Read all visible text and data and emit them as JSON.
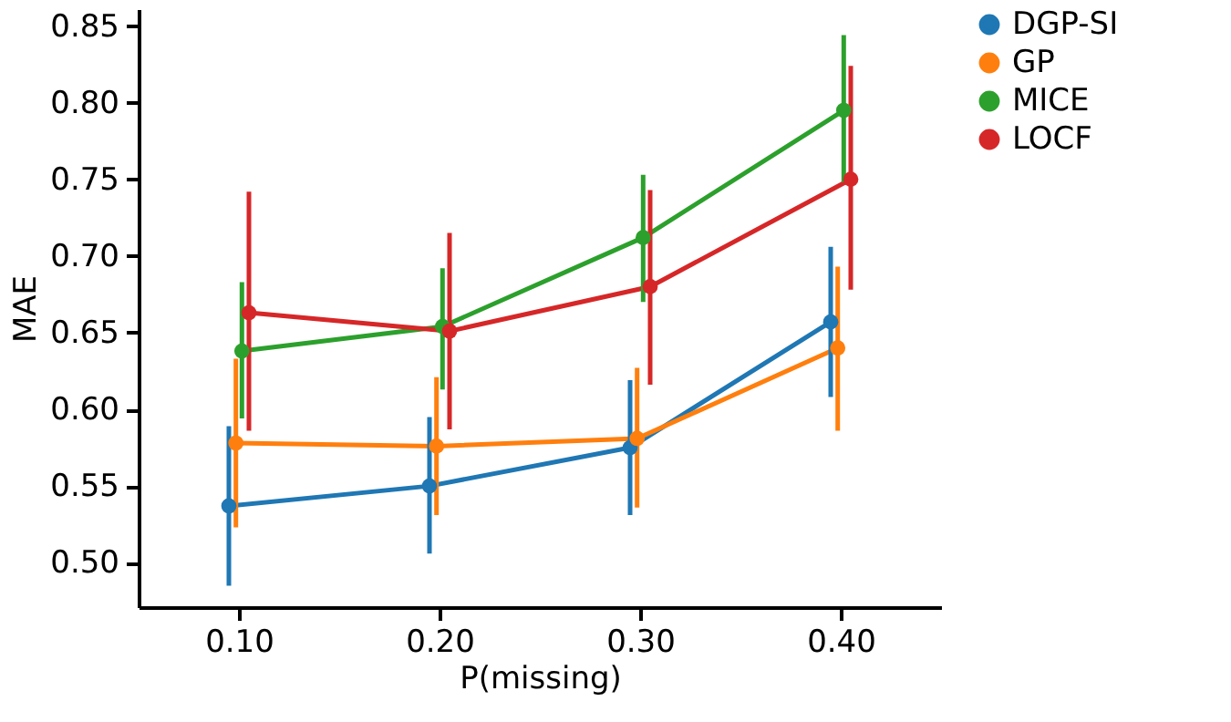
{
  "chart_data": {
    "type": "line",
    "xlabel": "P(missing)",
    "ylabel": "MAE",
    "xlim": [
      0.05,
      0.45
    ],
    "xticks": [
      {
        "value": 0.1,
        "label": "0.10"
      },
      {
        "value": 0.2,
        "label": "0.20"
      },
      {
        "value": 0.3,
        "label": "0.30"
      },
      {
        "value": 0.4,
        "label": "0.40"
      }
    ],
    "ylim": [
      0.471,
      0.861
    ],
    "yticks": [
      {
        "value": 0.5,
        "label": "0.50"
      },
      0.55,
      {
        "value": 0.6,
        "label": "0.60"
      },
      0.65,
      {
        "value": 0.7,
        "label": "0.70"
      },
      0.75,
      {
        "value": 0.8,
        "label": "0.80"
      },
      0.85
    ],
    "grid": false,
    "legend": "top right",
    "marker": "circle",
    "line_style": "solid",
    "series": [
      {
        "name": "DGP-SI",
        "color": "#1f77b4",
        "x": [
          0.095,
          0.195,
          0.295,
          0.395
        ],
        "values": [
          0.537,
          0.55,
          0.575,
          0.657
        ],
        "errors": [
          [
            0.485,
            0.589
          ],
          [
            0.506,
            0.595
          ],
          [
            0.531,
            0.619
          ],
          [
            0.608,
            0.706
          ]
        ]
      },
      {
        "name": "GP",
        "color": "#ff7f0e",
        "x": [
          0.0985,
          0.1985,
          0.2985,
          0.3985
        ],
        "values": [
          0.578,
          0.576,
          0.581,
          0.64
        ],
        "errors": [
          [
            0.523,
            0.633
          ],
          [
            0.531,
            0.621
          ],
          [
            0.536,
            0.627
          ],
          [
            0.586,
            0.693
          ]
        ]
      },
      {
        "name": "MICE",
        "color": "#2ca02c",
        "x": [
          0.1015,
          0.2015,
          0.3015,
          0.4015
        ],
        "values": [
          0.638,
          0.654,
          0.712,
          0.795
        ],
        "errors": [
          [
            0.594,
            0.683
          ],
          [
            0.613,
            0.692
          ],
          [
            0.67,
            0.753
          ],
          [
            0.748,
            0.844
          ]
        ]
      },
      {
        "name": "LOCF",
        "color": "#d62728",
        "x": [
          0.105,
          0.205,
          0.305,
          0.405
        ],
        "values": [
          0.663,
          0.651,
          0.68,
          0.75
        ],
        "errors": [
          [
            0.586,
            0.742
          ],
          [
            0.587,
            0.715
          ],
          [
            0.616,
            0.743
          ],
          [
            0.678,
            0.824
          ]
        ]
      }
    ]
  }
}
